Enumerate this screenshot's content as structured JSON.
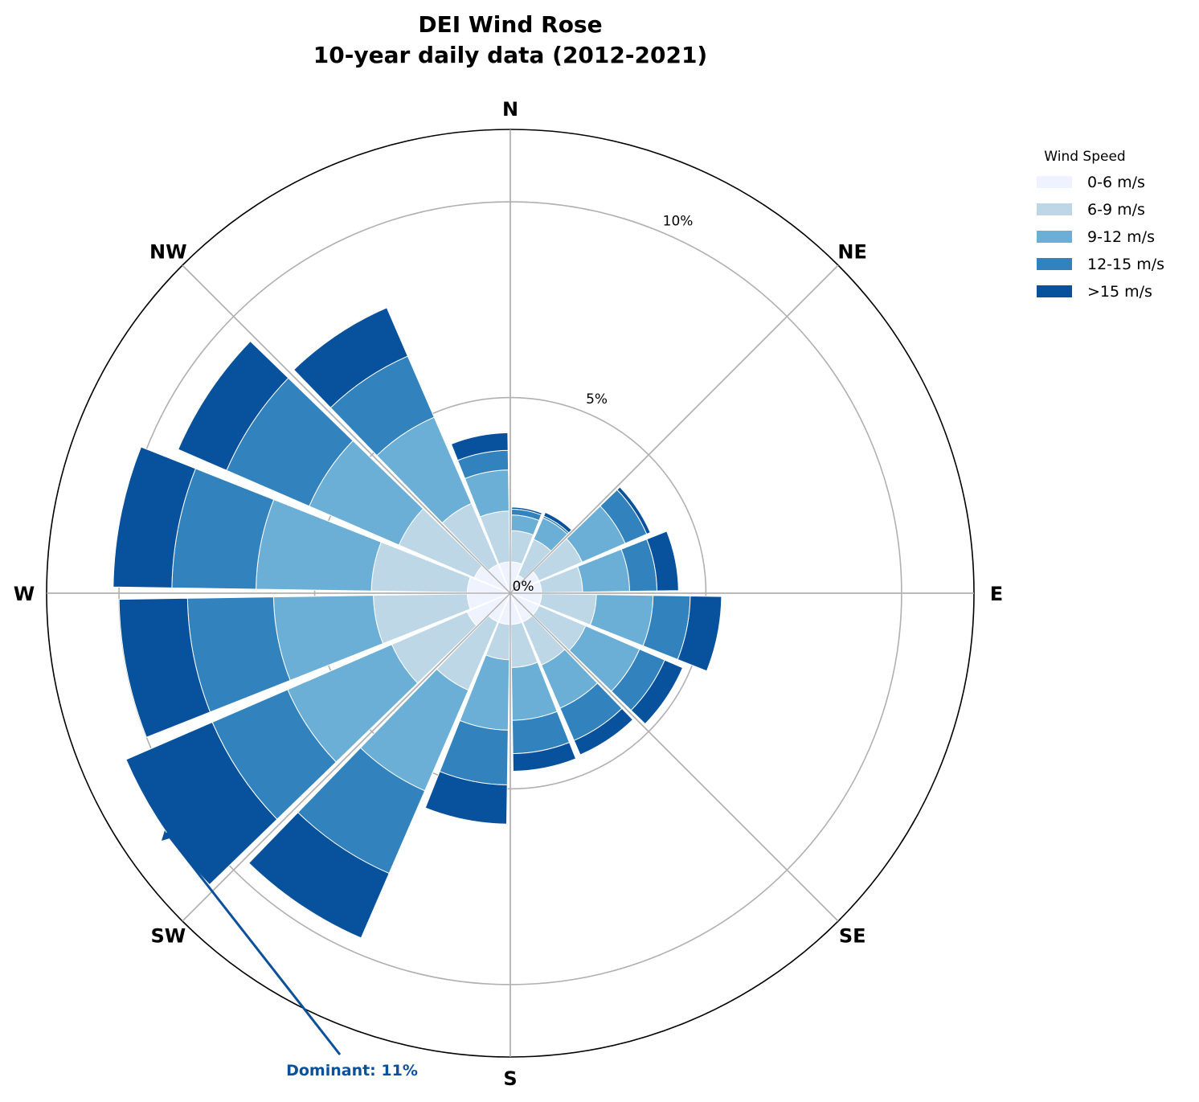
{
  "chart_data": {
    "type": "windrose",
    "title": "DEI Wind Rose",
    "subtitle": "10-year daily data (2012-2021)",
    "directions": [
      "N",
      "NE",
      "E",
      "SE",
      "S",
      "SW",
      "W",
      "NW"
    ],
    "radial_ticks": [
      {
        "value": 0,
        "label": "0%"
      },
      {
        "value": 5,
        "label": "5%"
      },
      {
        "value": 10,
        "label": "10%"
      }
    ],
    "rmax": 11.85,
    "sector_width_deg": 22.5,
    "sector_start_deg": [
      0,
      22.5,
      45,
      67.5,
      90,
      112.5,
      135,
      157.5,
      180,
      202.5,
      225,
      247.5,
      270,
      292.5,
      315,
      337.5
    ],
    "legend": {
      "title": "Wind Speed",
      "placement": "top-right"
    },
    "series": [
      {
        "name": "0-6 m/s",
        "color": "#eff3ff",
        "values": [
          0.8,
          0.5,
          0.8,
          0.8,
          0.8,
          0.8,
          0.8,
          0.8,
          0.8,
          0.8,
          1.2,
          1.1,
          1.1,
          1.0,
          0.8,
          0.8
        ]
      },
      {
        "name": "6-9 m/s",
        "color": "#bdd7e7",
        "values": [
          0.8,
          1.0,
          1.2,
          1.05,
          1.4,
          1.3,
          1.2,
          1.1,
          0.9,
          1.9,
          2.1,
          2.4,
          2.45,
          2.1,
          1.7,
          1.3
        ]
      },
      {
        "name": "9-12 m/s",
        "color": "#6baed6",
        "values": [
          0.4,
          0.6,
          1.2,
          1.2,
          1.45,
          1.5,
          1.2,
          1.35,
          1.8,
          2.8,
          2.9,
          2.55,
          2.95,
          2.5,
          2.4,
          1.05
        ]
      },
      {
        "name": "12-15 m/s",
        "color": "#3182bd",
        "values": [
          0.15,
          0.05,
          0.6,
          0.7,
          0.95,
          0.7,
          0.9,
          0.85,
          1.4,
          2.3,
          2.1,
          2.2,
          2.15,
          2.3,
          1.7,
          0.5
        ]
      },
      {
        "name": ">15 m/s",
        "color": "#08519c",
        "values": [
          0.05,
          0.1,
          0.1,
          0.55,
          0.8,
          0.5,
          0.4,
          0.45,
          1.0,
          1.8,
          2.4,
          1.75,
          1.5,
          1.35,
          1.35,
          0.45
        ]
      }
    ],
    "annotation": {
      "text": "Dominant: 11%",
      "sector_start_deg": 225,
      "color": "#0b509b"
    }
  }
}
